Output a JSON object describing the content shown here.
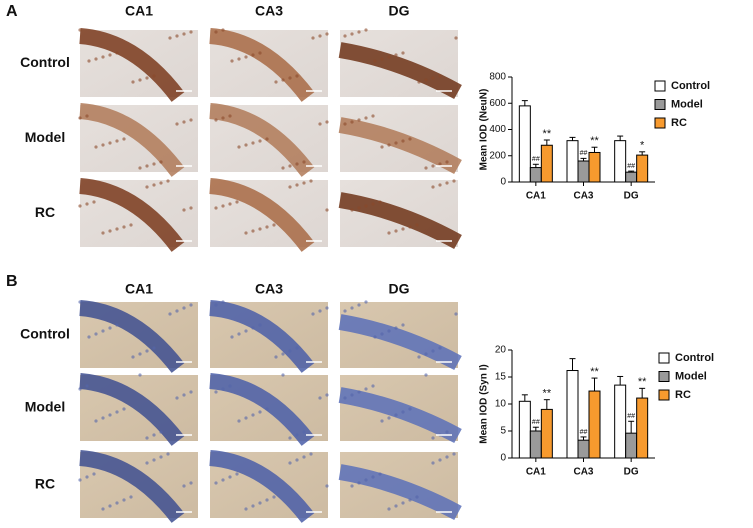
{
  "panels": [
    {
      "label": "A",
      "columns": [
        "CA1",
        "CA3",
        "DG"
      ],
      "rows": [
        "Control",
        "Model",
        "RC"
      ]
    },
    {
      "label": "B",
      "columns": [
        "CA1",
        "CA3",
        "DG"
      ],
      "rows": [
        "Control",
        "Model",
        "RC"
      ]
    }
  ],
  "chart_data": [
    {
      "type": "bar",
      "ylabel": "Mean IOD (NeuN)",
      "categories": [
        "CA1",
        "CA3",
        "DG"
      ],
      "ylim": [
        0,
        800
      ],
      "yticks": [
        0,
        200,
        400,
        600,
        800
      ],
      "series": [
        {
          "name": "Control",
          "color": "#ffffff",
          "values": [
            580,
            315,
            315
          ],
          "errors": [
            40,
            25,
            35
          ]
        },
        {
          "name": "Model",
          "color": "#9a9a9a",
          "values": [
            110,
            160,
            75
          ],
          "errors": [
            25,
            20,
            8
          ],
          "annotations": [
            "##",
            "##",
            "##"
          ]
        },
        {
          "name": "RC",
          "color": "#f79a2e",
          "values": [
            280,
            225,
            205
          ],
          "errors": [
            40,
            40,
            25
          ],
          "annotations": [
            "**",
            "**",
            "*"
          ]
        }
      ]
    },
    {
      "type": "bar",
      "ylabel": "Mean IOD (Syn I)",
      "categories": [
        "CA1",
        "CA3",
        "DG"
      ],
      "ylim": [
        0,
        20
      ],
      "yticks": [
        0,
        5,
        10,
        15,
        20
      ],
      "series": [
        {
          "name": "Control",
          "color": "#ffffff",
          "values": [
            10.5,
            16.2,
            13.5
          ],
          "errors": [
            1.2,
            2.2,
            1.6
          ]
        },
        {
          "name": "Model",
          "color": "#9a9a9a",
          "values": [
            5.0,
            3.3,
            4.6
          ],
          "errors": [
            0.7,
            0.6,
            2.2
          ],
          "annotations": [
            "##",
            "##",
            "##"
          ]
        },
        {
          "name": "RC",
          "color": "#f79a2e",
          "values": [
            9.0,
            12.4,
            11.1
          ],
          "errors": [
            1.8,
            2.4,
            1.8
          ],
          "annotations": [
            "**",
            "**",
            "**"
          ]
        }
      ]
    }
  ]
}
